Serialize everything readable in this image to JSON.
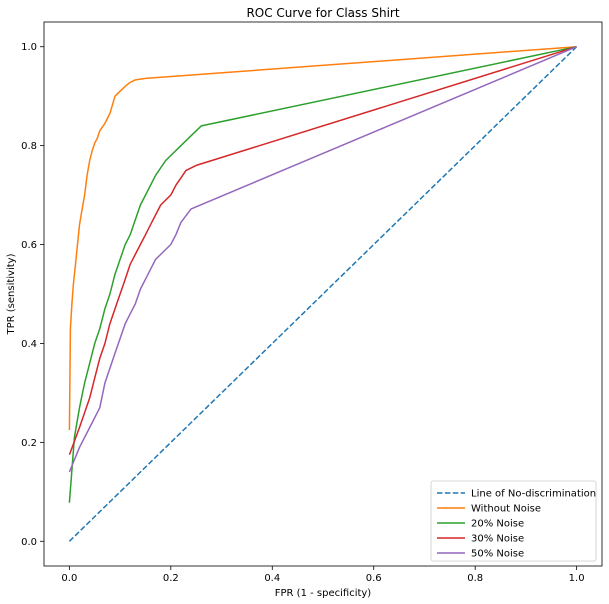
{
  "chart_data": {
    "type": "line",
    "title": "ROC Curve for Class Shirt",
    "xlabel": "FPR (1 - specificity)",
    "ylabel": "TPR (sensitivity)",
    "xlim": [
      -0.05,
      1.05
    ],
    "ylim": [
      -0.05,
      1.05
    ],
    "xticks": [
      0.0,
      0.2,
      0.4,
      0.6,
      0.8,
      1.0
    ],
    "xtick_labels": [
      "0.0",
      "0.2",
      "0.4",
      "0.6",
      "0.8",
      "1.0"
    ],
    "yticks": [
      0.0,
      0.2,
      0.4,
      0.6,
      0.8,
      1.0
    ],
    "ytick_labels": [
      "0.0",
      "0.2",
      "0.4",
      "0.6",
      "0.8",
      "1.0"
    ],
    "grid": false,
    "legend_position": "lower-right",
    "series": [
      {
        "name": "Line of No-discrimination",
        "color": "#1f77b4",
        "dashed": true,
        "x": [
          0.0,
          1.0
        ],
        "y": [
          0.0,
          1.0
        ]
      },
      {
        "name": "Without Noise",
        "color": "#ff7f0e",
        "dashed": false,
        "x": [
          0.0,
          0.002,
          0.005,
          0.008,
          0.012,
          0.016,
          0.02,
          0.025,
          0.03,
          0.035,
          0.04,
          0.045,
          0.05,
          0.055,
          0.06,
          0.07,
          0.08,
          0.09,
          0.1,
          0.11,
          0.12,
          0.13,
          0.15,
          1.0
        ],
        "y": [
          0.225,
          0.43,
          0.48,
          0.52,
          0.56,
          0.6,
          0.64,
          0.67,
          0.7,
          0.74,
          0.77,
          0.79,
          0.805,
          0.815,
          0.83,
          0.845,
          0.865,
          0.9,
          0.91,
          0.92,
          0.928,
          0.933,
          0.936,
          1.0
        ]
      },
      {
        "name": "20% Noise",
        "color": "#2ca02c",
        "dashed": false,
        "x": [
          0.0,
          0.01,
          0.02,
          0.03,
          0.04,
          0.05,
          0.06,
          0.07,
          0.08,
          0.09,
          0.1,
          0.11,
          0.12,
          0.13,
          0.14,
          0.15,
          0.17,
          0.19,
          0.2,
          0.22,
          0.24,
          0.26,
          1.0
        ],
        "y": [
          0.078,
          0.21,
          0.27,
          0.32,
          0.36,
          0.4,
          0.43,
          0.47,
          0.5,
          0.54,
          0.57,
          0.6,
          0.62,
          0.65,
          0.68,
          0.7,
          0.74,
          0.77,
          0.78,
          0.8,
          0.82,
          0.84,
          1.0
        ]
      },
      {
        "name": "30% Noise",
        "color": "#d62728",
        "dashed": false,
        "x": [
          0.0,
          0.02,
          0.04,
          0.05,
          0.06,
          0.07,
          0.08,
          0.09,
          0.1,
          0.11,
          0.12,
          0.13,
          0.14,
          0.15,
          0.16,
          0.17,
          0.18,
          0.19,
          0.2,
          0.21,
          0.22,
          0.23,
          0.25,
          1.0
        ],
        "y": [
          0.175,
          0.23,
          0.29,
          0.33,
          0.37,
          0.4,
          0.44,
          0.47,
          0.5,
          0.53,
          0.56,
          0.58,
          0.6,
          0.62,
          0.64,
          0.66,
          0.68,
          0.69,
          0.7,
          0.72,
          0.735,
          0.75,
          0.76,
          1.0
        ]
      },
      {
        "name": "50% Noise",
        "color": "#9467bd",
        "dashed": false,
        "x": [
          0.0,
          0.02,
          0.04,
          0.06,
          0.07,
          0.08,
          0.09,
          0.1,
          0.11,
          0.12,
          0.13,
          0.14,
          0.15,
          0.16,
          0.17,
          0.18,
          0.19,
          0.2,
          0.21,
          0.22,
          0.24,
          1.0
        ],
        "y": [
          0.14,
          0.19,
          0.23,
          0.27,
          0.32,
          0.35,
          0.38,
          0.41,
          0.44,
          0.46,
          0.48,
          0.51,
          0.53,
          0.55,
          0.57,
          0.58,
          0.59,
          0.6,
          0.62,
          0.645,
          0.672,
          1.0
        ]
      }
    ]
  }
}
